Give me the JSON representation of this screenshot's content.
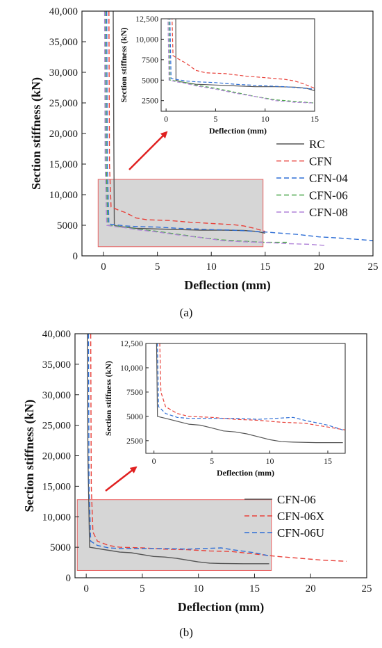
{
  "chart_data": [
    {
      "type": "line",
      "caption": "(a)",
      "xlabel": "Deflection (mm)",
      "ylabel": "Section stiffness (kN)",
      "xlim": [
        -2,
        25
      ],
      "ylim": [
        0,
        40000
      ],
      "xticks": [
        0,
        5,
        10,
        15,
        20,
        25
      ],
      "xtick_labels": [
        "0",
        "5",
        "10",
        "15",
        "20",
        "25"
      ],
      "yticks": [
        0,
        5000,
        10000,
        15000,
        20000,
        25000,
        30000,
        35000,
        40000
      ],
      "ytick_labels": [
        "0",
        "5000",
        "10,000",
        "15,000",
        "20,000",
        "25,000",
        "30,000",
        "35,000",
        "40,000"
      ],
      "legend_position": "right",
      "highlight_box": {
        "x": [
          -0.5,
          14.8
        ],
        "y": [
          1500,
          12500
        ]
      },
      "series": [
        {
          "name": "RC",
          "color": "#555555",
          "dash": "solid",
          "points": [
            [
              0.9,
              40000
            ],
            [
              0.95,
              20000
            ],
            [
              1.0,
              5000
            ],
            [
              1.5,
              4800
            ],
            [
              2,
              4700
            ],
            [
              3,
              4500
            ],
            [
              4,
              4450
            ],
            [
              5,
              4400
            ],
            [
              7,
              4300
            ],
            [
              9,
              4200
            ],
            [
              11,
              4200
            ],
            [
              13,
              4150
            ],
            [
              14.2,
              4000
            ],
            [
              15,
              3700
            ]
          ]
        },
        {
          "name": "CFN",
          "color": "#e8413a",
          "dash": "dashed",
          "points": [
            [
              0.5,
              40000
            ],
            [
              0.55,
              15000
            ],
            [
              0.7,
              8000
            ],
            [
              1.5,
              7400
            ],
            [
              2,
              7100
            ],
            [
              3,
              6200
            ],
            [
              4,
              5900
            ],
            [
              6,
              5800
            ],
            [
              8,
              5500
            ],
            [
              10,
              5300
            ],
            [
              12,
              5100
            ],
            [
              13,
              4900
            ],
            [
              14,
              4500
            ],
            [
              15,
              4000
            ]
          ]
        },
        {
          "name": "CFN-04",
          "color": "#2f6fd6",
          "dash": "dashed",
          "points": [
            [
              0.3,
              40000
            ],
            [
              0.35,
              15000
            ],
            [
              0.5,
              5200
            ],
            [
              1,
              5100
            ],
            [
              2,
              4900
            ],
            [
              3,
              4800
            ],
            [
              5,
              4700
            ],
            [
              7,
              4500
            ],
            [
              10,
              4300
            ],
            [
              12,
              4200
            ],
            [
              15,
              3900
            ],
            [
              18,
              3500
            ],
            [
              20,
              3100
            ],
            [
              22,
              2900
            ],
            [
              25,
              2500
            ]
          ]
        },
        {
          "name": "CFN-06",
          "color": "#49a649",
          "dash": "dashed",
          "points": [
            [
              0.2,
              40000
            ],
            [
              0.25,
              15000
            ],
            [
              0.4,
              5000
            ],
            [
              1,
              4900
            ],
            [
              2,
              4700
            ],
            [
              3,
              4400
            ],
            [
              5,
              4000
            ],
            [
              7,
              3500
            ],
            [
              9,
              3000
            ],
            [
              11,
              2600
            ],
            [
              13,
              2400
            ],
            [
              15,
              2200
            ],
            [
              17,
              2200
            ]
          ]
        },
        {
          "name": "CFN-08",
          "color": "#b184d8",
          "dash": "dashed",
          "points": [
            [
              0.1,
              40000
            ],
            [
              0.15,
              15000
            ],
            [
              0.3,
              5000
            ],
            [
              1,
              4800
            ],
            [
              2,
              4600
            ],
            [
              3,
              4300
            ],
            [
              5,
              3900
            ],
            [
              7,
              3400
            ],
            [
              9,
              3000
            ],
            [
              11,
              2500
            ],
            [
              13,
              2300
            ],
            [
              15,
              2200
            ],
            [
              17,
              2000
            ],
            [
              19,
              1900
            ],
            [
              20.5,
              1700
            ]
          ]
        }
      ],
      "inset": {
        "xlabel": "Deflection (mm)",
        "ylabel": "Section stiffness (kN)",
        "xlim": [
          -0.5,
          15
        ],
        "ylim": [
          1200,
          12500
        ],
        "xticks": [
          0,
          5,
          10,
          15
        ],
        "xtick_labels": [
          "0",
          "5",
          "10",
          "15"
        ],
        "yticks": [
          2500,
          5000,
          7500,
          10000,
          12500
        ],
        "ytick_labels": [
          "2500",
          "5000",
          "7500",
          "10,000",
          "12,500"
        ]
      }
    },
    {
      "type": "line",
      "caption": "(b)",
      "xlabel": "Deflection (mm)",
      "ylabel": "Section stiffness (kN)",
      "xlim": [
        -1,
        25
      ],
      "ylim": [
        0,
        40000
      ],
      "xticks": [
        0,
        5,
        10,
        15,
        20,
        25
      ],
      "xtick_labels": [
        "0",
        "5",
        "10",
        "15",
        "20",
        "25"
      ],
      "yticks": [
        0,
        5000,
        10000,
        15000,
        20000,
        25000,
        30000,
        35000,
        40000
      ],
      "ytick_labels": [
        "0",
        "5000",
        "10,000",
        "15,000",
        "20,000",
        "25,000",
        "30,000",
        "35,000",
        "40,000"
      ],
      "legend_position": "right",
      "highlight_box": {
        "x": [
          -0.8,
          16.5
        ],
        "y": [
          1200,
          12800
        ]
      },
      "series": [
        {
          "name": "CFN-06",
          "color": "#555555",
          "dash": "solid",
          "points": [
            [
              0.1,
              40000
            ],
            [
              0.15,
              20000
            ],
            [
              0.3,
              5000
            ],
            [
              1,
              4800
            ],
            [
              2,
              4500
            ],
            [
              3,
              4200
            ],
            [
              4,
              4100
            ],
            [
              5,
              3800
            ],
            [
              6,
              3500
            ],
            [
              7,
              3400
            ],
            [
              8,
              3200
            ],
            [
              9,
              2900
            ],
            [
              10,
              2600
            ],
            [
              11,
              2400
            ],
            [
              12,
              2350
            ],
            [
              14,
              2300
            ],
            [
              16.3,
              2300
            ]
          ]
        },
        {
          "name": "CFN-06X",
          "color": "#e8413a",
          "dash": "dashed",
          "points": [
            [
              0.4,
              40000
            ],
            [
              0.45,
              15000
            ],
            [
              0.6,
              7500
            ],
            [
              1,
              6000
            ],
            [
              2,
              5300
            ],
            [
              3,
              5000
            ],
            [
              5,
              4900
            ],
            [
              7,
              4700
            ],
            [
              9,
              4600
            ],
            [
              11,
              4400
            ],
            [
              13,
              4300
            ],
            [
              15,
              3900
            ],
            [
              17,
              3500
            ],
            [
              19,
              3200
            ],
            [
              21,
              2900
            ],
            [
              23.2,
              2700
            ]
          ]
        },
        {
          "name": "CFN-06U",
          "color": "#2f6fd6",
          "dash": "dashed",
          "points": [
            [
              0.2,
              40000
            ],
            [
              0.25,
              15000
            ],
            [
              0.4,
              6000
            ],
            [
              1,
              5300
            ],
            [
              2,
              4900
            ],
            [
              3,
              4800
            ],
            [
              5,
              4800
            ],
            [
              7,
              4800
            ],
            [
              9,
              4700
            ],
            [
              10.5,
              4800
            ],
            [
              12,
              4900
            ],
            [
              13,
              4600
            ],
            [
              15,
              4100
            ],
            [
              16.3,
              3600
            ]
          ]
        }
      ],
      "inset": {
        "xlabel": "Deflection (mm)",
        "ylabel": "Section stiffness (kN)",
        "xlim": [
          -0.7,
          16.5
        ],
        "ylim": [
          1200,
          12500
        ],
        "xticks": [
          0,
          5,
          10,
          15
        ],
        "xtick_labels": [
          "0",
          "5",
          "10",
          "15"
        ],
        "yticks": [
          2500,
          5000,
          7500,
          10000,
          12500
        ],
        "ytick_labels": [
          "2500",
          "5000",
          "7500",
          "10,000",
          "12,500"
        ]
      }
    }
  ]
}
